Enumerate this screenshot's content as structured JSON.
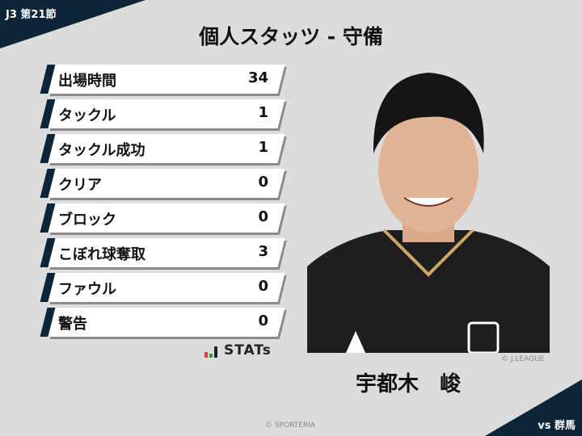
{
  "header": {
    "round": "J3 第21節",
    "title": "個人スタッツ - 守備"
  },
  "stats": [
    {
      "label": "出場時間",
      "value": "34"
    },
    {
      "label": "タックル",
      "value": "1"
    },
    {
      "label": "タックル成功",
      "value": "1"
    },
    {
      "label": "クリア",
      "value": "0"
    },
    {
      "label": "ブロック",
      "value": "0"
    },
    {
      "label": "こぼれ球奪取",
      "value": "3"
    },
    {
      "label": "ファウル",
      "value": "0"
    },
    {
      "label": "警告",
      "value": "0"
    }
  ],
  "logo": {
    "text": "STATs",
    "colors": [
      "#e53935",
      "#2e9e4a",
      "#0d2538"
    ]
  },
  "player": {
    "name": "宇都木　峻",
    "photo_credit": "© J.LEAGUE"
  },
  "footer": {
    "credit": "© SPORTERIA",
    "opponent": "vs 群馬"
  },
  "colors": {
    "navy": "#0d2538",
    "background": "#dcdcdc"
  }
}
